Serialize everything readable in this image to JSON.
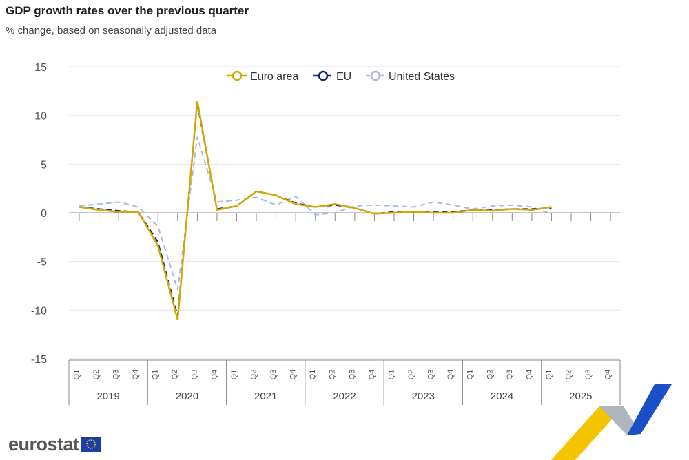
{
  "title": "GDP growth rates over the previous quarter",
  "subtitle": "% change, based on seasonally adjusted data",
  "logo_text": "eurostat",
  "chart_data": {
    "type": "line",
    "title": "GDP growth rates over the previous quarter",
    "ylim": [
      -15,
      15
    ],
    "yticks": [
      15,
      10,
      5,
      0,
      -5,
      -10,
      -15
    ],
    "grid": true,
    "legend": "top-center",
    "years": [
      "2019",
      "2020",
      "2021",
      "2022",
      "2023",
      "2024",
      "2025"
    ],
    "quarters": [
      "Q1",
      "Q2",
      "Q3",
      "Q4"
    ],
    "series": [
      {
        "name": "Euro area",
        "color": "#d4a800",
        "dash": false,
        "values": [
          0.6,
          0.3,
          0.1,
          0.1,
          -3.4,
          -11.0,
          11.5,
          0.3,
          0.7,
          2.2,
          1.8,
          0.9,
          0.6,
          0.9,
          0.5,
          -0.1,
          0.0,
          0.1,
          0.0,
          0.0,
          0.3,
          0.2,
          0.4,
          0.3,
          0.6
        ]
      },
      {
        "name": "EU",
        "color": "#0e2a6e",
        "dash": true,
        "values": [
          0.6,
          0.4,
          0.2,
          0.1,
          -3.0,
          -10.6,
          11.2,
          0.4,
          0.7,
          2.2,
          1.8,
          1.0,
          0.6,
          0.8,
          0.5,
          -0.1,
          0.1,
          0.1,
          0.1,
          0.1,
          0.3,
          0.3,
          0.4,
          0.4,
          0.5
        ]
      },
      {
        "name": "United States",
        "color": "#a5b8e8",
        "dash": true,
        "values": [
          0.7,
          0.9,
          1.1,
          0.6,
          -1.4,
          -7.9,
          7.8,
          1.1,
          1.3,
          1.6,
          0.8,
          1.7,
          -0.2,
          0.0,
          0.7,
          0.8,
          0.7,
          0.6,
          1.1,
          0.8,
          0.4,
          0.7,
          0.8,
          0.6,
          -0.1
        ]
      }
    ]
  }
}
